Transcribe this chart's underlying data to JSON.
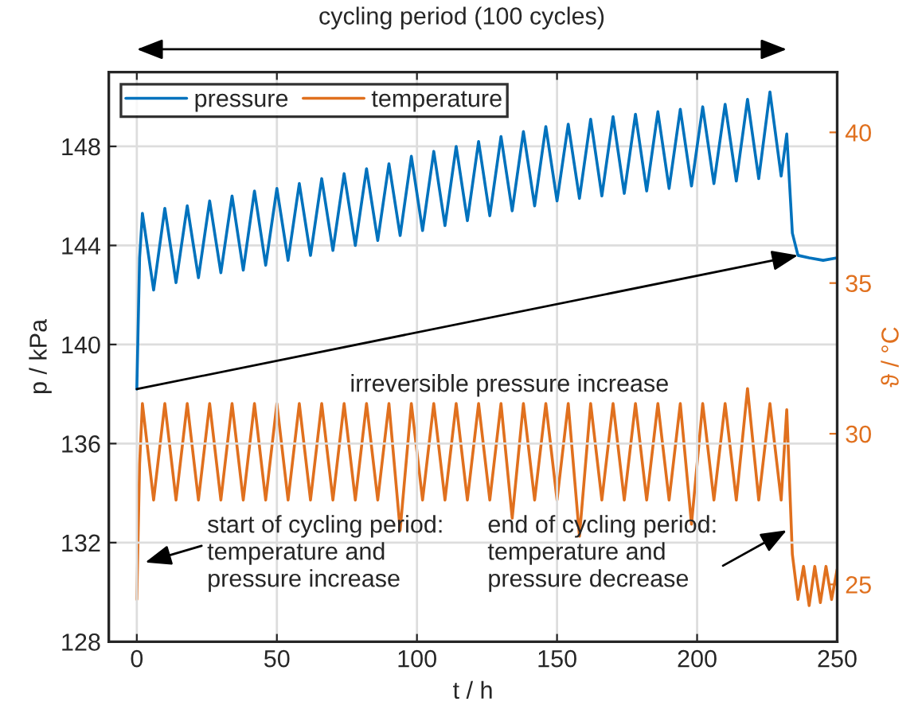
{
  "chart_data": {
    "type": "line",
    "xlabel": "t / h",
    "ylabel": "p / kPa",
    "y2label": "ϑ / °C",
    "xlim": [
      -10,
      250
    ],
    "xticks": [
      0,
      50,
      100,
      150,
      200,
      250
    ],
    "ylim": [
      128,
      151
    ],
    "yticks": [
      128,
      132,
      136,
      140,
      144,
      148
    ],
    "y2lim": [
      23.1,
      42
    ],
    "y2ticks": [
      25,
      30,
      35,
      40
    ],
    "grid": true,
    "legend": "top left",
    "series": [
      {
        "name": "pressure",
        "color": "#0072bd",
        "x": [
          0,
          1,
          2,
          6,
          10,
          14,
          18,
          22,
          26,
          30,
          34,
          38,
          42,
          46,
          50,
          54,
          58,
          62,
          66,
          70,
          74,
          78,
          82,
          86,
          90,
          94,
          98,
          102,
          106,
          110,
          114,
          118,
          122,
          126,
          130,
          134,
          138,
          142,
          146,
          150,
          154,
          158,
          162,
          166,
          170,
          174,
          178,
          182,
          186,
          190,
          194,
          198,
          202,
          206,
          210,
          214,
          218,
          222,
          226,
          230,
          232,
          234,
          236,
          240,
          245,
          250
        ],
        "values": [
          138.2,
          143.5,
          145.3,
          142.2,
          145.5,
          142.5,
          145.6,
          142.7,
          145.8,
          142.9,
          146.0,
          143.0,
          146.2,
          143.2,
          146.3,
          143.4,
          146.5,
          143.6,
          146.7,
          143.8,
          146.9,
          144.0,
          147.1,
          144.2,
          147.3,
          144.4,
          147.6,
          144.6,
          147.8,
          144.8,
          148.0,
          145.0,
          148.2,
          145.2,
          148.4,
          145.4,
          148.6,
          145.6,
          148.8,
          145.8,
          148.9,
          145.9,
          149.1,
          146.0,
          149.2,
          146.1,
          149.3,
          146.2,
          149.4,
          146.3,
          149.5,
          146.4,
          149.6,
          146.5,
          149.7,
          146.6,
          149.9,
          146.7,
          150.2,
          146.8,
          148.5,
          144.5,
          143.6,
          143.5,
          143.4,
          143.5
        ]
      },
      {
        "name": "temperature",
        "color": "#e0701e",
        "axis": "y2",
        "x": [
          0,
          1,
          2,
          6,
          10,
          14,
          18,
          22,
          26,
          30,
          34,
          38,
          42,
          46,
          50,
          54,
          58,
          62,
          66,
          70,
          74,
          78,
          82,
          86,
          90,
          94,
          98,
          102,
          106,
          110,
          114,
          118,
          122,
          126,
          130,
          134,
          138,
          142,
          146,
          150,
          154,
          158,
          162,
          166,
          170,
          174,
          178,
          182,
          186,
          190,
          194,
          198,
          202,
          206,
          210,
          214,
          218,
          222,
          226,
          230,
          232,
          234,
          236,
          238,
          240,
          242,
          244,
          246,
          248,
          250
        ],
        "values": [
          24.5,
          29.0,
          31.0,
          27.8,
          31.0,
          27.8,
          31.0,
          27.8,
          31.0,
          27.8,
          31.0,
          27.8,
          31.0,
          27.8,
          31.0,
          27.8,
          31.0,
          27.8,
          31.0,
          27.8,
          31.0,
          27.8,
          31.0,
          27.8,
          31.0,
          26.8,
          31.0,
          27.8,
          31.0,
          27.8,
          31.0,
          27.8,
          31.0,
          27.8,
          31.0,
          27.2,
          31.0,
          27.8,
          31.0,
          27.8,
          31.0,
          26.6,
          31.0,
          27.8,
          31.0,
          27.8,
          31.0,
          27.8,
          31.0,
          27.8,
          31.0,
          27.0,
          31.0,
          27.8,
          31.0,
          27.8,
          31.5,
          27.8,
          31.0,
          27.8,
          30.8,
          26.0,
          24.5,
          25.6,
          24.3,
          25.6,
          24.4,
          25.6,
          24.5,
          25.5
        ]
      }
    ],
    "annotations": [
      "cycling period (100 cycles)",
      "irreversible pressure increase",
      {
        "text": "start of cycling period:\ntemperature and\npressure increase",
        "x": 3,
        "y": 131.2
      },
      {
        "text": "end of cycling period:\ntemperature and\npressure decrease",
        "x": 232,
        "y": 132.5
      }
    ]
  }
}
